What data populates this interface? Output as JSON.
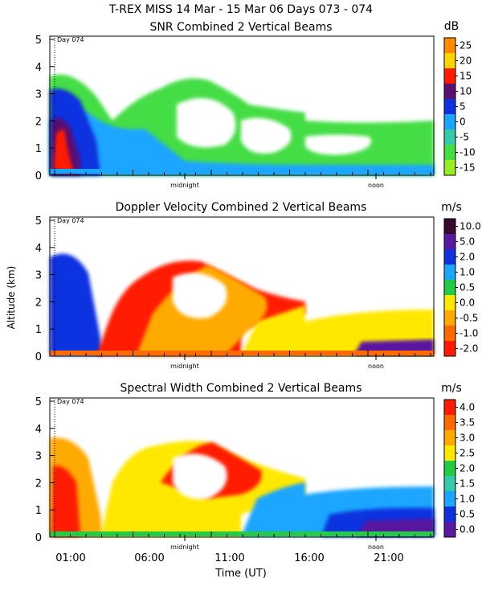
{
  "header": {
    "title": "T-REX MISS   14 Mar - 15 Mar 06 Days 073 - 074"
  },
  "chart_data": [
    {
      "type": "heatmap",
      "title": "SNR Combined 2 Vertical Beams",
      "ylabel": "",
      "ylim": [
        0,
        5
      ],
      "y_ticks": [
        "0",
        "1",
        "2",
        "3",
        "4",
        "5"
      ],
      "colorbar_unit": "dB",
      "colorbar_labels": [
        "25",
        "20",
        "15",
        "10",
        "5",
        "0",
        "-5",
        "-10",
        "-15"
      ],
      "colorbar_colors": [
        "#ff8c00",
        "#ffd400",
        "#ff1a00",
        "#5a1070",
        "#1030e0",
        "#1aa6ff",
        "#33ccaa",
        "#44dd44",
        "#99ee22"
      ],
      "annotations": {
        "day_marker": "Day 074",
        "midnight": "midnight",
        "noon": "noon"
      }
    },
    {
      "type": "heatmap",
      "title": "Doppler Velocity Combined 2 Vertical Beams",
      "ylabel": "Altitude (km)",
      "ylim": [
        0,
        5
      ],
      "y_ticks": [
        "0",
        "1",
        "2",
        "3",
        "4",
        "5"
      ],
      "colorbar_unit": "m/s",
      "colorbar_labels": [
        "10.0",
        "5.0",
        "2.0",
        "1.0",
        "0.5",
        "0.0",
        "-0.5",
        "-1.0",
        "-2.0"
      ],
      "colorbar_colors": [
        "#3a0a30",
        "#5a18a0",
        "#1030e0",
        "#1aa6ff",
        "#22cc44",
        "#ffe800",
        "#ffaa00",
        "#ff6a00",
        "#ff1a00"
      ],
      "annotations": {
        "day_marker": "Day 074",
        "midnight": "midnight",
        "noon": "noon"
      }
    },
    {
      "type": "heatmap",
      "title": "Spectral Width Combined 2 Vertical Beams",
      "ylabel": "",
      "ylim": [
        0,
        5
      ],
      "y_ticks": [
        "0",
        "1",
        "2",
        "3",
        "4",
        "5"
      ],
      "colorbar_unit": "m/s",
      "colorbar_labels": [
        "4.0",
        "3.5",
        "3.0",
        "2.5",
        "2.0",
        "1.5",
        "1.0",
        "0.5",
        "0.0"
      ],
      "colorbar_colors": [
        "#ff1a00",
        "#ff6a00",
        "#ffaa00",
        "#ffe800",
        "#22cc44",
        "#33ccaa",
        "#1aa6ff",
        "#1030e0",
        "#5a18a0"
      ],
      "annotations": {
        "day_marker": "Day 074",
        "midnight": "midnight",
        "noon": "noon"
      },
      "xlabel": "Time (UT)",
      "x_ticks": [
        "01:00",
        "06:00",
        "11:00",
        "16:00",
        "21:00"
      ]
    }
  ]
}
